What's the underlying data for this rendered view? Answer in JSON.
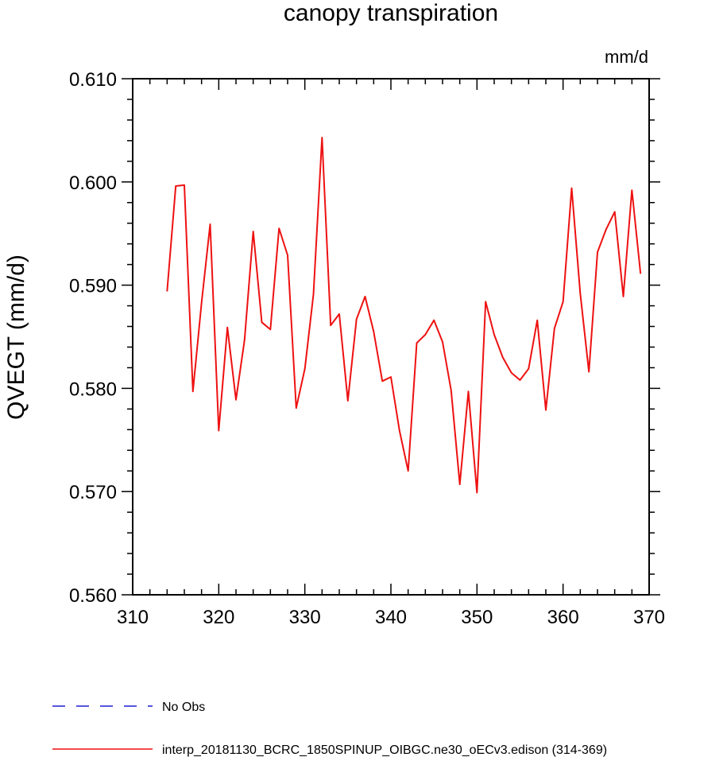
{
  "chart_data": {
    "type": "line",
    "title": "canopy transpiration",
    "units": "mm/d",
    "xlabel": "",
    "ylabel": "QVEGT  (mm/d)",
    "xlim": [
      310,
      370
    ],
    "ylim": [
      0.56,
      0.61
    ],
    "x_ticks": [
      310,
      320,
      330,
      340,
      350,
      360,
      370
    ],
    "y_ticks": [
      0.56,
      0.57,
      0.58,
      0.59,
      0.6,
      0.61
    ],
    "x_tick_labels": [
      "310",
      "320",
      "330",
      "340",
      "350",
      "360",
      "370"
    ],
    "y_tick_labels": [
      "0.560",
      "0.570",
      "0.580",
      "0.590",
      "0.600",
      "0.610"
    ],
    "grid": false,
    "legend_position": "bottom",
    "series": [
      {
        "name": "No Obs",
        "color": "#1f1fd6",
        "dash": "dashed",
        "x": [],
        "values": []
      },
      {
        "name": "interp_20181130_BCRC_1850SPINUP_OIBGC.ne30_oECv3.edison (314-369)",
        "color": "#ee1111",
        "dash": "solid",
        "x": [
          314,
          315,
          316,
          317,
          318,
          319,
          320,
          321,
          322,
          323,
          324,
          325,
          326,
          327,
          328,
          329,
          330,
          331,
          332,
          333,
          334,
          335,
          336,
          337,
          338,
          339,
          340,
          341,
          342,
          343,
          344,
          345,
          346,
          347,
          348,
          349,
          350,
          351,
          352,
          353,
          354,
          355,
          356,
          357,
          358,
          359,
          360,
          361,
          362,
          363,
          364,
          365,
          366,
          367,
          368,
          369
        ],
        "values": [
          0.5894,
          0.5996,
          0.5997,
          0.5797,
          0.5883,
          0.5959,
          0.5759,
          0.5859,
          0.5789,
          0.5847,
          0.5952,
          0.5864,
          0.5857,
          0.5955,
          0.5929,
          0.5781,
          0.5819,
          0.5891,
          0.6043,
          0.5861,
          0.5872,
          0.5788,
          0.5867,
          0.5889,
          0.5855,
          0.5807,
          0.5811,
          0.5759,
          0.572,
          0.5844,
          0.5852,
          0.5866,
          0.5845,
          0.5798,
          0.5707,
          0.5797,
          0.5699,
          0.5884,
          0.5852,
          0.583,
          0.5815,
          0.5808,
          0.5819,
          0.5866,
          0.5779,
          0.5858,
          0.5884,
          0.5994,
          0.5892,
          0.5816,
          0.5932,
          0.5954,
          0.5971,
          0.5889,
          0.5992,
          0.5911
        ]
      }
    ]
  }
}
